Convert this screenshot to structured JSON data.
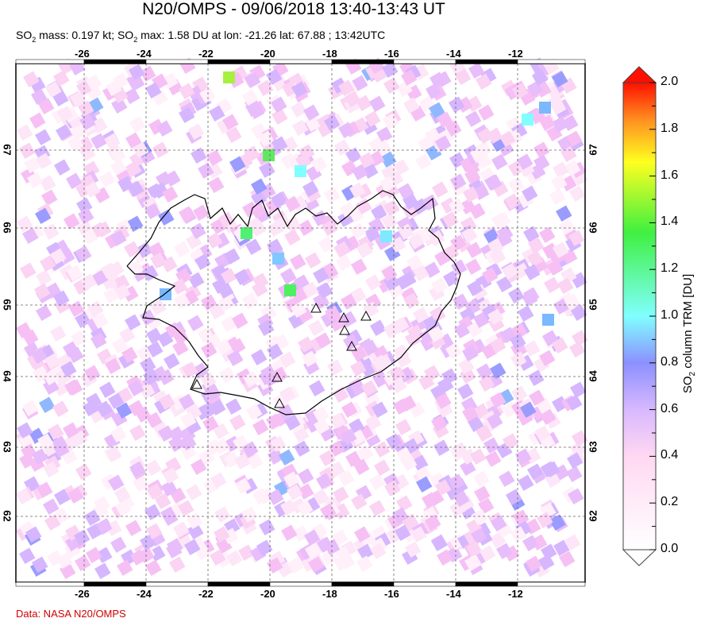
{
  "title": "N20/OMPS - 09/06/2018 13:40-13:43 UT",
  "subtitle": {
    "prefix": "SO",
    "sub": "2",
    "mid1": " mass: 0.197 kt; SO",
    "sub2": "2",
    "rest": " max: 1.58 DU at lon: -21.26 lat: 67.88 ; 13:42UTC"
  },
  "map": {
    "lon_ticks": [
      "-26",
      "-24",
      "-22",
      "-20",
      "-18",
      "-16",
      "-14",
      "-12"
    ],
    "lat_ticks": [
      "67",
      "66",
      "65",
      "64",
      "63",
      "62"
    ],
    "lon_range": [
      -28.2,
      -9.8
    ],
    "lat_range": [
      61.2,
      68.1
    ],
    "grid": "dashed",
    "volcano_markers": 8
  },
  "colorbar": {
    "label_prefix": "SO",
    "label_sub": "2",
    "label_rest": " column TRM [DU]",
    "ticks": [
      "2.0",
      "1.8",
      "1.6",
      "1.4",
      "1.2",
      "1.0",
      "0.8",
      "0.6",
      "0.4",
      "0.2",
      "0.0"
    ],
    "range": [
      0.0,
      2.0
    ],
    "colors": [
      "#ffffff",
      "#ffd0f0",
      "#d0b0ff",
      "#8090ff",
      "#80ffff",
      "#40ff40",
      "#ffff20",
      "#ff8000",
      "#ff0000"
    ]
  },
  "footer": "Data: NASA N20/OMPS"
}
